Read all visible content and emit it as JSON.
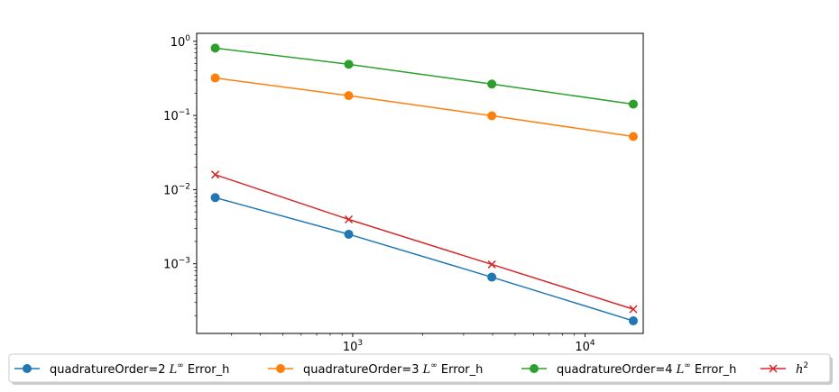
{
  "chart_data": {
    "type": "line",
    "title": "",
    "xlabel": "",
    "ylabel": "",
    "xscale": "log",
    "yscale": "log",
    "xlim": [
      213,
      17800
    ],
    "ylim": [
      0.000115,
      1.28
    ],
    "grid": false,
    "legend_placement": "bottom, below plot, 4 columns",
    "x": [
      256,
      961,
      3969,
      16129
    ],
    "x_ticks": [
      {
        "value": 1000,
        "base": "10",
        "exp": "3"
      },
      {
        "value": 10000,
        "base": "10",
        "exp": "4"
      }
    ],
    "y_ticks": [
      {
        "value": 1,
        "base": "10",
        "exp": "0"
      },
      {
        "value": 0.1,
        "base": "10",
        "exp": "−1"
      },
      {
        "value": 0.01,
        "base": "10",
        "exp": "−2"
      },
      {
        "value": 0.001,
        "base": "10",
        "exp": "−3"
      }
    ],
    "series": [
      {
        "name_main": "quadratureOrder=2 ",
        "name_math": "L",
        "name_sup": "∞",
        "name_tail": " Error_h",
        "color": "#1f77b4",
        "marker": "circle",
        "values": [
          0.0078,
          0.0025,
          0.00066,
          0.00017
        ]
      },
      {
        "name_main": "quadratureOrder=3 ",
        "name_math": "L",
        "name_sup": "∞",
        "name_tail": " Error_h",
        "color": "#ff7f0e",
        "marker": "circle",
        "values": [
          0.32,
          0.185,
          0.099,
          0.052
        ]
      },
      {
        "name_main": "quadratureOrder=4 ",
        "name_math": "L",
        "name_sup": "∞",
        "name_tail": " Error_h",
        "color": "#2ca02c",
        "marker": "circle",
        "values": [
          0.81,
          0.49,
          0.265,
          0.142
        ]
      },
      {
        "name_main": "",
        "name_math": "h",
        "name_sup": "2",
        "name_tail": "",
        "color": "#d62728",
        "marker": "x",
        "values": [
          0.0159,
          0.00396,
          0.00098,
          0.000244
        ]
      }
    ]
  }
}
